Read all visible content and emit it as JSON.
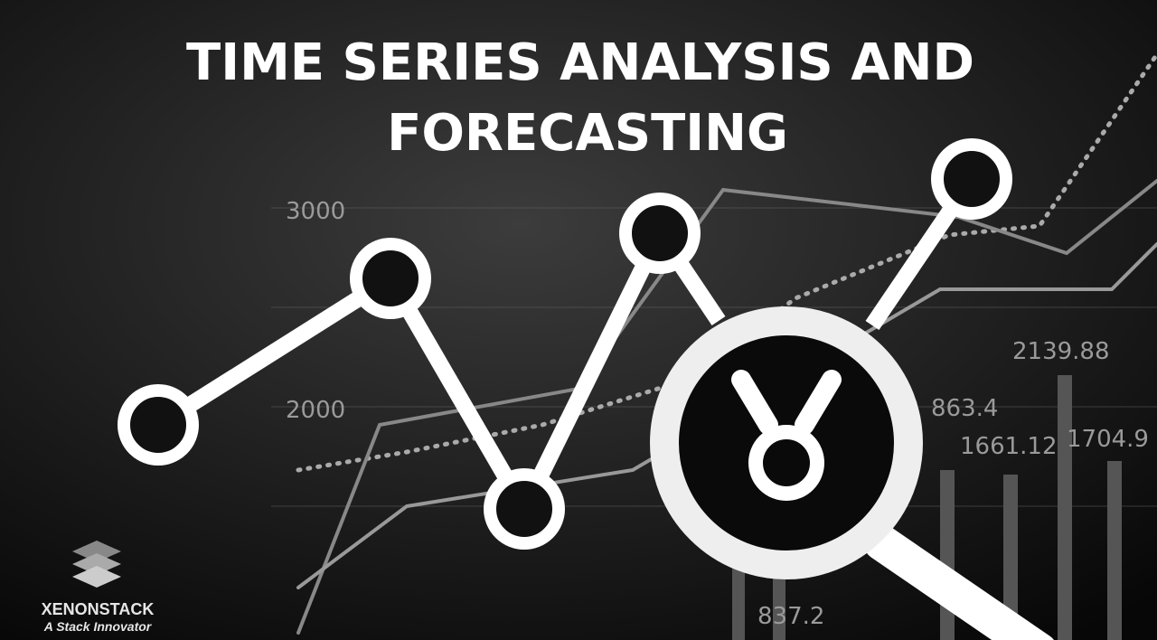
{
  "title": [
    "TIME SERIES ANALYSIS AND",
    "FORECASTING"
  ],
  "background_labels": [
    "3000",
    "2000",
    "2139.88",
    "863.4",
    "1661.12",
    "1704.9",
    "837.2"
  ],
  "logo": {
    "name": "XENONSTACK",
    "tagline": "A Stack Innovator"
  }
}
